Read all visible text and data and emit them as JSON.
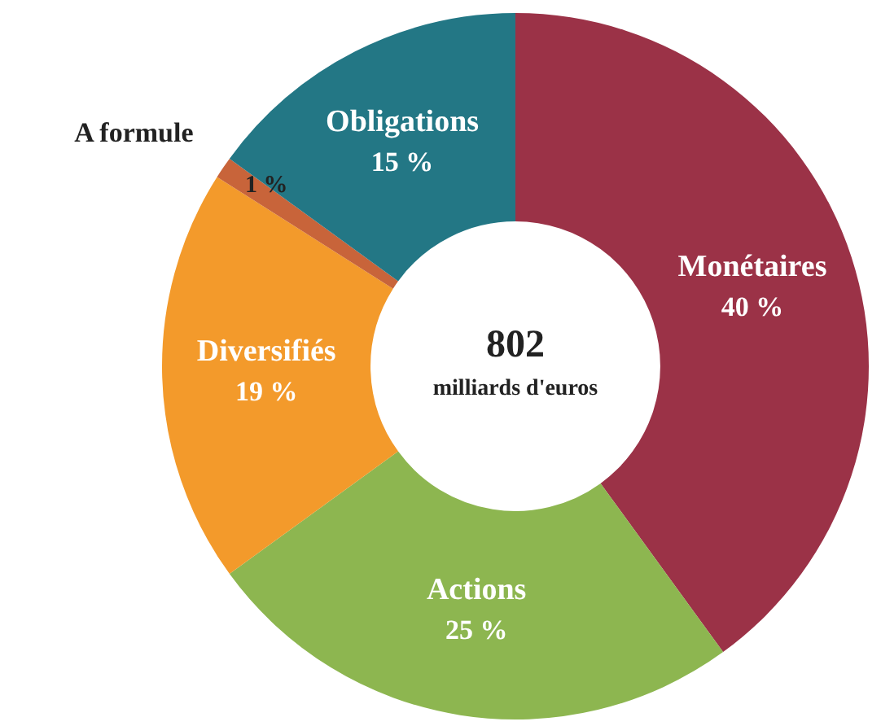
{
  "chart_data": {
    "type": "donut",
    "categories": [
      "Monétaires",
      "Actions",
      "Diversifiés",
      "A formule",
      "Obligations"
    ],
    "values": [
      40,
      25,
      19,
      1,
      15
    ],
    "colors": [
      "#9b3247",
      "#8db650",
      "#f39a2b",
      "#c8643a",
      "#237785"
    ],
    "value_labels": [
      "40 %",
      "25 %",
      "19 %",
      "1 %",
      "15 %"
    ],
    "annotations": [
      "802",
      "milliards d'euros"
    ],
    "legend": false
  }
}
